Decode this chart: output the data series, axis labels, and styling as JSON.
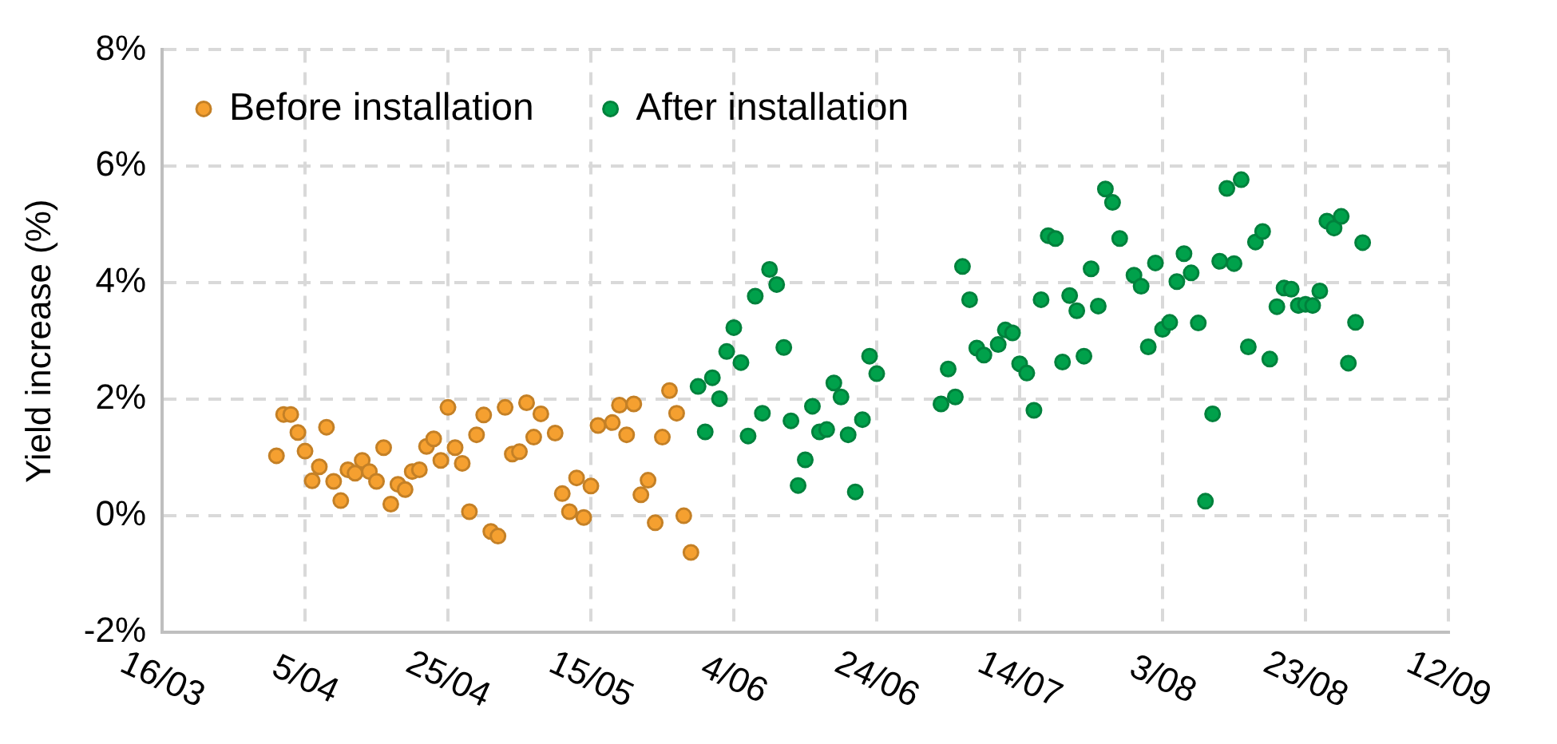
{
  "chart_data": {
    "type": "scatter",
    "ylabel": "Yield increase (%)",
    "xlim": [
      "--03-16",
      "--09-12"
    ],
    "xticks": [
      {
        "value": "--03-16",
        "label": "16/03"
      },
      {
        "value": "--04-05",
        "label": "5/04"
      },
      {
        "value": "--04-25",
        "label": "25/04"
      },
      {
        "value": "--05-15",
        "label": "15/05"
      },
      {
        "value": "--06-04",
        "label": "4/06"
      },
      {
        "value": "--06-24",
        "label": "24/06"
      },
      {
        "value": "--07-14",
        "label": "14/07"
      },
      {
        "value": "--08-03",
        "label": "3/08"
      },
      {
        "value": "--08-23",
        "label": "23/08"
      },
      {
        "value": "--09-12",
        "label": "12/09"
      }
    ],
    "ylim": [
      -2,
      8
    ],
    "yticks": [
      {
        "value": -2,
        "label": "-2%"
      },
      {
        "value": 0,
        "label": "0%"
      },
      {
        "value": 2,
        "label": "2%"
      },
      {
        "value": 4,
        "label": "4%"
      },
      {
        "value": 6,
        "label": "6%"
      },
      {
        "value": 8,
        "label": "8%"
      }
    ],
    "grid": true,
    "legend": "top left",
    "marker": "circle",
    "series": [
      {
        "name": "Before installation",
        "color": "#f5a030",
        "x": [
          "--04-01",
          "--04-02",
          "--04-03",
          "--04-04",
          "--04-05",
          "--04-06",
          "--04-07",
          "--04-08",
          "--04-09",
          "--04-10",
          "--04-11",
          "--04-12",
          "--04-13",
          "--04-14",
          "--04-15",
          "--04-16",
          "--04-17",
          "--04-18",
          "--04-19",
          "--04-20",
          "--04-21",
          "--04-22",
          "--04-23",
          "--04-24",
          "--04-25",
          "--04-26",
          "--04-27",
          "--04-28",
          "--04-29",
          "--04-30",
          "--05-01",
          "--05-02",
          "--05-03",
          "--05-04",
          "--05-05",
          "--05-06",
          "--05-07",
          "--05-08",
          "--05-10",
          "--05-11",
          "--05-12",
          "--05-13",
          "--05-14",
          "--05-15",
          "--05-16",
          "--05-18",
          "--05-19",
          "--05-20",
          "--05-21",
          "--05-22",
          "--05-23",
          "--05-24",
          "--05-25",
          "--05-26",
          "--05-27",
          "--05-28",
          "--05-29"
        ],
        "values": [
          1.03,
          1.74,
          1.74,
          1.43,
          1.11,
          0.6,
          0.84,
          1.52,
          0.59,
          0.26,
          0.79,
          0.73,
          0.95,
          0.76,
          0.59,
          1.17,
          0.2,
          0.54,
          0.45,
          0.76,
          0.79,
          1.19,
          1.32,
          0.95,
          1.86,
          1.17,
          0.9,
          0.07,
          1.39,
          1.73,
          -0.27,
          -0.35,
          1.86,
          1.06,
          1.1,
          1.94,
          1.35,
          1.75,
          1.42,
          0.38,
          0.07,
          0.65,
          -0.03,
          0.51,
          1.55,
          1.6,
          1.9,
          1.39,
          1.92,
          0.36,
          0.61,
          -0.12,
          1.35,
          2.15,
          1.76,
          0.0,
          -0.63
        ]
      },
      {
        "name": "After installation",
        "color": "#00a14b",
        "x": [
          "--05-30",
          "--05-31",
          "--06-01",
          "--06-02",
          "--06-03",
          "--06-04",
          "--06-05",
          "--06-06",
          "--06-07",
          "--06-08",
          "--06-09",
          "--06-10",
          "--06-11",
          "--06-12",
          "--06-13",
          "--06-14",
          "--06-15",
          "--06-16",
          "--06-17",
          "--06-18",
          "--06-19",
          "--06-20",
          "--06-21",
          "--06-22",
          "--06-23",
          "--06-24",
          "--07-03",
          "--07-04",
          "--07-05",
          "--07-06",
          "--07-07",
          "--07-08",
          "--07-09",
          "--07-11",
          "--07-12",
          "--07-13",
          "--07-14",
          "--07-15",
          "--07-16",
          "--07-17",
          "--07-18",
          "--07-19",
          "--07-20",
          "--07-21",
          "--07-22",
          "--07-23",
          "--07-24",
          "--07-25",
          "--07-26",
          "--07-27",
          "--07-28",
          "--07-30",
          "--07-31",
          "--08-01",
          "--08-02",
          "--08-03",
          "--08-04",
          "--08-05",
          "--08-06",
          "--08-07",
          "--08-08",
          "--08-09",
          "--08-10",
          "--08-11",
          "--08-12",
          "--08-13",
          "--08-14",
          "--08-15",
          "--08-16",
          "--08-17",
          "--08-18",
          "--08-19",
          "--08-20",
          "--08-21",
          "--08-22",
          "--08-23",
          "--08-24",
          "--08-25",
          "--08-26",
          "--08-27",
          "--08-28",
          "--08-29",
          "--08-30",
          "--08-31"
        ],
        "values": [
          2.22,
          1.44,
          2.37,
          2.01,
          2.82,
          3.23,
          2.63,
          1.37,
          3.77,
          1.76,
          4.23,
          3.97,
          2.89,
          1.63,
          0.52,
          0.96,
          1.88,
          1.44,
          1.48,
          2.28,
          2.04,
          1.39,
          0.41,
          1.65,
          2.74,
          2.44,
          1.92,
          2.52,
          2.04,
          4.28,
          3.71,
          2.88,
          2.76,
          2.94,
          3.19,
          3.14,
          2.61,
          2.45,
          1.81,
          3.71,
          4.81,
          4.76,
          2.64,
          3.78,
          3.52,
          2.74,
          4.24,
          3.6,
          5.61,
          5.38,
          4.76,
          4.13,
          3.94,
          2.9,
          4.34,
          3.2,
          3.32,
          4.02,
          4.5,
          4.17,
          3.31,
          0.25,
          1.75,
          4.37,
          5.62,
          4.33,
          5.77,
          2.9,
          4.7,
          4.88,
          2.69,
          3.59,
          3.91,
          3.89,
          3.61,
          3.63,
          3.61,
          3.86,
          5.06,
          4.94,
          5.14,
          2.62,
          3.32,
          4.69
        ]
      }
    ]
  }
}
